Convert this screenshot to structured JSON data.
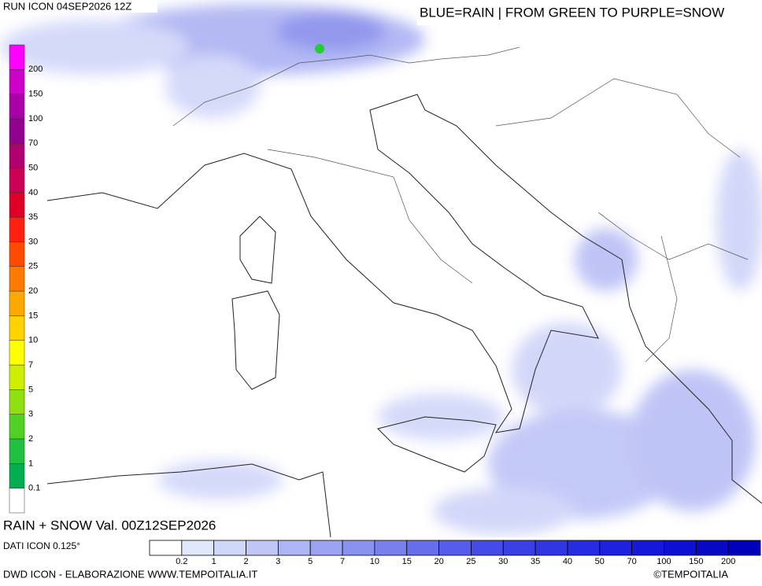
{
  "header": {
    "run": "RUN ICON 04SEP2026 12Z",
    "key": "BLUE=RAIN | FROM GREEN TO PURPLE=SNOW"
  },
  "snow_scale": {
    "labels": [
      200,
      150,
      100,
      70,
      50,
      40,
      35,
      30,
      25,
      20,
      15,
      10,
      7,
      5,
      3,
      2,
      1,
      0.1
    ],
    "colors": [
      "#ff00ff",
      "#cc00c8",
      "#aa00a8",
      "#920090",
      "#b00070",
      "#cc0055",
      "#e00025",
      "#ff2010",
      "#ff4a00",
      "#ff7a00",
      "#ffa800",
      "#ffd200",
      "#ffff00",
      "#ccf000",
      "#90e010",
      "#50d020",
      "#20c040",
      "#00b050",
      "#ffffff"
    ]
  },
  "rain_scale": {
    "labels": [
      0.2,
      1,
      2,
      3,
      5,
      7,
      10,
      15,
      20,
      25,
      30,
      35,
      40,
      50,
      70,
      100,
      150,
      200
    ],
    "colors": [
      "#ffffff",
      "#e2e8fb",
      "#d0d8f8",
      "#bfc7f6",
      "#adb5f4",
      "#9ca3f2",
      "#8a92f0",
      "#7880ee",
      "#676eec",
      "#565dea",
      "#454be8",
      "#3a40e6",
      "#3036e4",
      "#262ce2",
      "#1c22e0",
      "#1418d8",
      "#0c10d0",
      "#0608c4",
      "#0000b8"
    ]
  },
  "caption": "RAIN + SNOW Val. 00Z12SEP2026",
  "data_source": "DATI ICON 0.125°",
  "footer": {
    "credit": "DWD ICON - ELABORAZIONE WWW.TEMPOITALIA.IT",
    "copyright": "©TEMPOITALIA"
  }
}
